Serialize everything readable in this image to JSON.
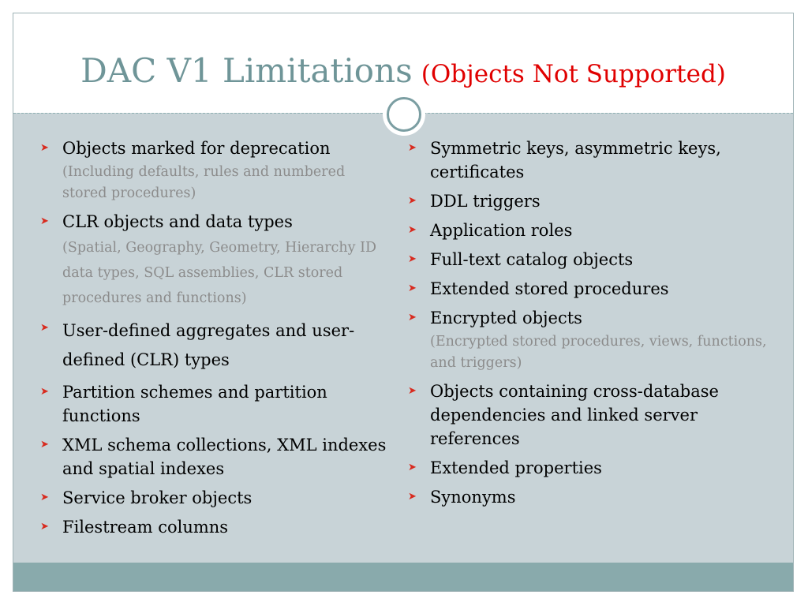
{
  "title": {
    "main": "DAC V1 Limitations",
    "sub": "(Objects Not Supported)"
  },
  "icons": {
    "bullet": "arrow-bullet-icon"
  },
  "colors": {
    "title": "#6f9598",
    "subtitle": "#e00000",
    "bullet": "#d82b1f",
    "note": "#8c8c8c",
    "body_bg": "#c8d3d7",
    "footer": "#89aaac"
  },
  "left": {
    "items": [
      {
        "text": "Objects marked for deprecation",
        "note": "(Including defaults, rules and numbered stored procedures)"
      },
      {
        "text": "CLR objects and data types",
        "note": "(Spatial, Geography, Geometry, Hierarchy ID data types, SQL assemblies, CLR stored procedures and functions)"
      },
      {
        "text": "User-defined aggregates and user-defined (CLR) types"
      },
      {
        "text": "Partition schemes and partition functions"
      },
      {
        "text": "XML schema collections, XML indexes and spatial indexes"
      },
      {
        "text": "Service broker objects"
      },
      {
        "text": "Filestream columns"
      }
    ]
  },
  "right": {
    "items": [
      {
        "text": "Symmetric keys, asymmetric keys, certificates"
      },
      {
        "text": "DDL triggers"
      },
      {
        "text": "Application roles"
      },
      {
        "text": "Full-text catalog objects"
      },
      {
        "text": "Extended stored procedures"
      },
      {
        "text": "Encrypted objects",
        "note": "(Encrypted stored procedures, views, functions, and triggers)"
      },
      {
        "text": "Objects containing cross-database dependencies and linked server references"
      },
      {
        "text": "Extended properties"
      },
      {
        "text": "Synonyms"
      }
    ]
  }
}
